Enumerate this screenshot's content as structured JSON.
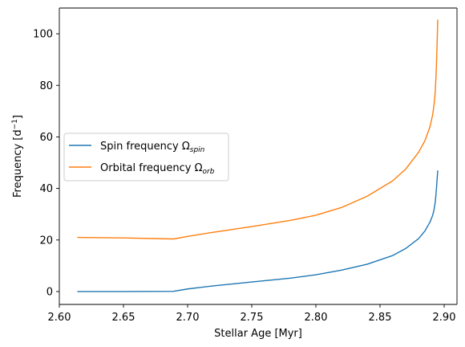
{
  "chart_data": {
    "type": "line",
    "title": "",
    "xlabel": "Stellar Age [Myr]",
    "ylabel_main": "Frequency [d",
    "ylabel_sup": "−1",
    "ylabel_end": "]",
    "xlim": [
      2.6,
      2.91
    ],
    "ylim": [
      -5,
      110
    ],
    "xticks": [
      2.6,
      2.65,
      2.7,
      2.75,
      2.8,
      2.85,
      2.9
    ],
    "xtick_labels": [
      "2.60",
      "2.65",
      "2.70",
      "2.75",
      "2.80",
      "2.85",
      "2.90"
    ],
    "yticks": [
      0,
      20,
      40,
      60,
      80,
      100
    ],
    "ytick_labels": [
      "0",
      "20",
      "40",
      "60",
      "80",
      "100"
    ],
    "grid": false,
    "legend_position": "center-left",
    "series": [
      {
        "name": "Spin frequency Ω",
        "name_sub": "spin",
        "color": "#1f77b4",
        "x": [
          2.614,
          2.65,
          2.689,
          2.7,
          2.72,
          2.75,
          2.78,
          2.8,
          2.82,
          2.84,
          2.86,
          2.87,
          2.88,
          2.885,
          2.889,
          2.891,
          2.892,
          2.893,
          2.8935,
          2.894,
          2.8945,
          2.895
        ],
        "y": [
          0,
          0,
          0.1,
          1.0,
          2.2,
          3.7,
          5.2,
          6.5,
          8.3,
          10.6,
          14.0,
          16.7,
          20.5,
          23.5,
          27.0,
          29.5,
          31.5,
          34.5,
          37.0,
          40.0,
          43.5,
          47.0
        ]
      },
      {
        "name": "Orbital frequency Ω",
        "name_sub": "orb",
        "color": "#ff7f0e",
        "x": [
          2.614,
          2.65,
          2.689,
          2.7,
          2.72,
          2.75,
          2.78,
          2.8,
          2.82,
          2.84,
          2.86,
          2.87,
          2.88,
          2.885,
          2.889,
          2.891,
          2.892,
          2.893,
          2.8935,
          2.894,
          2.8945,
          2.895
        ],
        "y": [
          21.0,
          20.8,
          20.4,
          21.4,
          23.0,
          25.2,
          27.6,
          29.6,
          32.6,
          37.0,
          43.0,
          47.5,
          54.0,
          58.5,
          64.0,
          68.5,
          72.0,
          77.0,
          82.0,
          88.0,
          96.0,
          105.5
        ]
      }
    ]
  }
}
